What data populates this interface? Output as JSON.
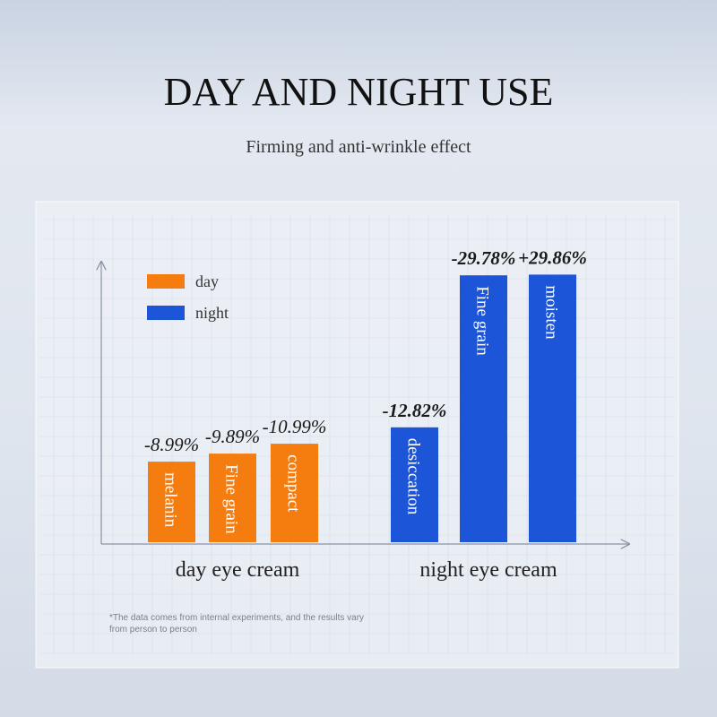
{
  "chart_data": {
    "type": "bar",
    "title": "DAY AND NIGHT USE",
    "subtitle": "Firming and anti-wrinkle effect",
    "footnote": "*The data comes from internal experiments, and the results vary from person to person",
    "group_labels": [
      "day eye cream",
      "night eye cream"
    ],
    "series": [
      {
        "name": "day",
        "color": "#f57c0e",
        "bar_labels": [
          "melanin",
          "Fine grain",
          "compact"
        ],
        "values": [
          -8.99,
          -9.89,
          -10.99
        ],
        "value_labels": [
          "-8.99%",
          "-9.89%",
          "-10.99%"
        ]
      },
      {
        "name": "night",
        "color": "#1d55d8",
        "bar_labels": [
          "desiccation",
          "Fine grain",
          "moisten"
        ],
        "values": [
          -12.82,
          -29.78,
          29.86
        ],
        "value_labels": [
          "-12.82%",
          "-29.78%",
          "+29.86%"
        ]
      }
    ]
  }
}
